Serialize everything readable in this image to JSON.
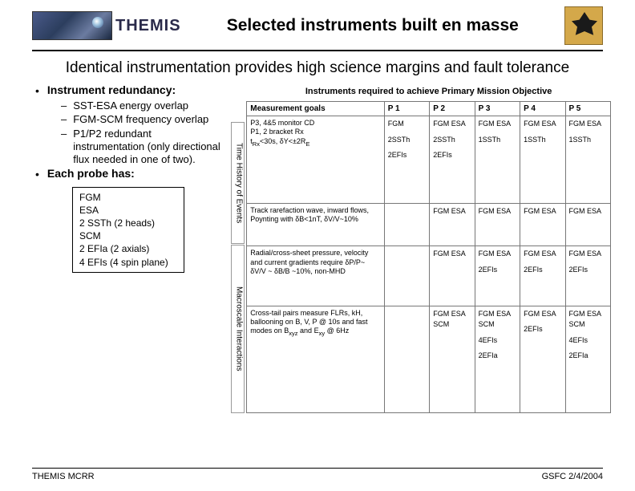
{
  "header": {
    "logo_text": "THEMIS",
    "slide_title": "Selected instruments built en masse"
  },
  "subtitle": "Identical instrumentation provides high science margins and fault tolerance",
  "left": {
    "b1": "Instrument redundancy:",
    "b1_subs": [
      "SST-ESA energy overlap",
      "FGM-SCM frequency overlap",
      "P1/P2 redundant instrumentation (only directional flux needed in one of two)."
    ],
    "b2": "Each probe has:",
    "box_items": [
      "FGM",
      "ESA",
      "2 SSTh (2 heads)",
      "SCM",
      "2 EFIa (2 axials)",
      "4 EFIs (4 spin plane)"
    ]
  },
  "vert": {
    "top": "Time History of Events",
    "bot": "Macroscale Interactions"
  },
  "table": {
    "caption": "Instruments required to achieve Primary Mission Objective",
    "headers": [
      "Measurement goals",
      "P 1",
      "P 2",
      "P 3",
      "P 4",
      "P 5"
    ],
    "rows": [
      {
        "mg_html": "P3, 4&5 monitor CD<br>P1, 2 bracket Rx<br>t<sub>Rx</sub>&lt;30s, δY&lt;±2R<sub>E</sub>",
        "cells": [
          [
            "FGM",
            "2SSTh",
            "2EFIs"
          ],
          [
            "FGM ESA",
            "2SSTh",
            "2EFIs"
          ],
          [
            "FGM ESA",
            "1SSTh"
          ],
          [
            "FGM ESA",
            "1SSTh"
          ],
          [
            "FGM ESA",
            "1SSTh"
          ]
        ]
      },
      {
        "mg_html": "Track rarefaction wave, inward flows, Poynting with δB&lt;1nT, δV/V~10%",
        "cells": [
          [],
          [
            "FGM ESA"
          ],
          [
            "FGM ESA"
          ],
          [
            "FGM ESA"
          ],
          [
            "FGM ESA"
          ]
        ]
      },
      {
        "mg_html": "Radial/cross-sheet pressure, velocity and current gradients require δP/P~ δV/V ~ δB/B ~10%, non-MHD",
        "cells": [
          [],
          [
            "FGM ESA"
          ],
          [
            "FGM ESA",
            "2EFIs"
          ],
          [
            "FGM ESA",
            "2EFIs"
          ],
          [
            "FGM ESA",
            "2EFIs"
          ]
        ]
      },
      {
        "mg_html": "Cross-tail pairs measure FLRs, kH, ballooning on B, V, P @ 10s and fast modes on B<sub>xyz</sub> and E<sub>xy</sub> @ 6Hz",
        "cells": [
          [],
          [
            "FGM ESA SCM"
          ],
          [
            "FGM ESA SCM",
            "4EFIs",
            "2EFIa"
          ],
          [
            "FGM ESA",
            "2EFIs"
          ],
          [
            "FGM ESA SCM",
            "4EFIs",
            "2EFIa"
          ]
        ]
      }
    ]
  },
  "footer": {
    "left": "THEMIS MCRR",
    "right": "GSFC 2/4/2004"
  }
}
